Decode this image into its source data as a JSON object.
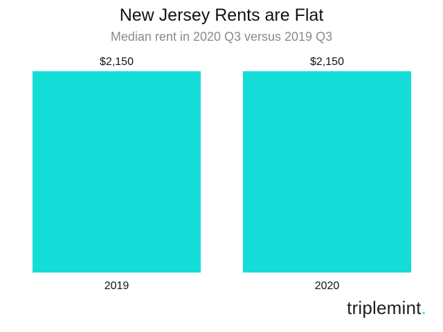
{
  "chart_data": {
    "type": "bar",
    "title": "New Jersey Rents are Flat",
    "subtitle": "Median rent in 2020 Q3 versus 2019 Q3",
    "categories": [
      "2019",
      "2020"
    ],
    "values": [
      2150,
      2150
    ],
    "value_labels": [
      "$2,150",
      "$2,150"
    ],
    "ylim": [
      0,
      2150
    ],
    "bar_color": "#14ddd7",
    "grid": false,
    "legend": "none"
  },
  "brand": {
    "name": "triplemint",
    "dot": ".",
    "accent": "#14ddd7"
  }
}
